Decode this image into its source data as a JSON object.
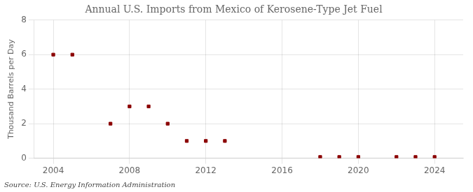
{
  "chart_data": {
    "type": "scatter",
    "title": "Annual U.S. Imports from Mexico of Kerosene-Type Jet Fuel",
    "ylabel": "Thousand Barrels per Day",
    "annotations": [
      "Source: U.S. Energy Information Administration"
    ],
    "x": [
      2004,
      2005,
      2007,
      2008,
      2009,
      2010,
      2011,
      2012,
      2013,
      2018,
      2019,
      2020,
      2022,
      2023,
      2024
    ],
    "values": [
      6,
      6,
      2,
      3,
      3,
      2,
      1,
      1,
      1,
      0.07,
      0.07,
      0.07,
      0.07,
      0.07,
      0.07
    ],
    "color": "#8b0000",
    "marker": "square",
    "xlim": [
      2003.0,
      2025.5
    ],
    "xticks": [
      2004,
      2008,
      2012,
      2016,
      2020,
      2024
    ],
    "ylim": [
      0,
      8
    ],
    "yticks": [
      0,
      2,
      4,
      6,
      8
    ],
    "grid": true
  }
}
